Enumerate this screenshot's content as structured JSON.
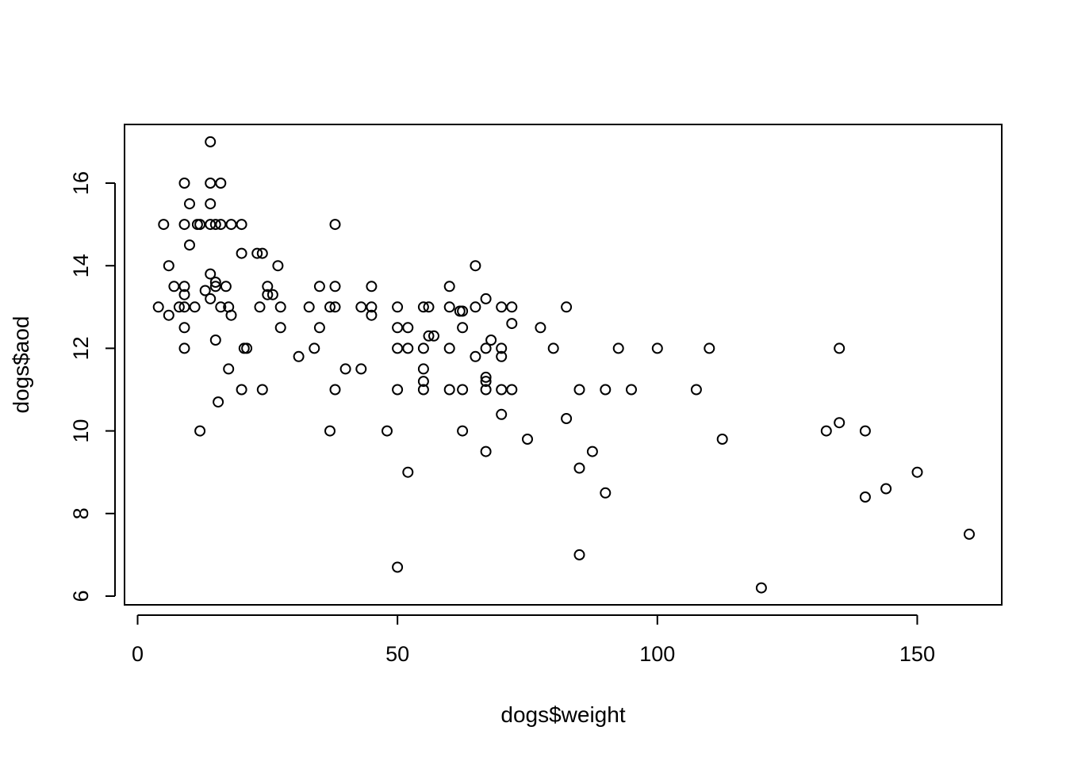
{
  "chart_data": {
    "type": "scatter",
    "title": "",
    "xlabel": "dogs$weight",
    "ylabel": "dogs$aod",
    "xlim": [
      0,
      165
    ],
    "ylim": [
      6,
      17
    ],
    "xticks": [
      "0",
      "50",
      "100",
      "150"
    ],
    "yticks": [
      "6",
      "8",
      "10",
      "12",
      "14",
      "16"
    ],
    "grid": false,
    "legend": "none",
    "marker": "open-circle",
    "color": "#000000",
    "points": [
      [
        4,
        13
      ],
      [
        5,
        15
      ],
      [
        6,
        12.8
      ],
      [
        6,
        14
      ],
      [
        7,
        13.5
      ],
      [
        8,
        13
      ],
      [
        9,
        16
      ],
      [
        9,
        15
      ],
      [
        9,
        13.5
      ],
      [
        9,
        13.3
      ],
      [
        9,
        13
      ],
      [
        9,
        12.5
      ],
      [
        9,
        12
      ],
      [
        10,
        15.5
      ],
      [
        10,
        14.5
      ],
      [
        11,
        13
      ],
      [
        11.5,
        15
      ],
      [
        12,
        15
      ],
      [
        12,
        10
      ],
      [
        13,
        13.4
      ],
      [
        14,
        17
      ],
      [
        14,
        16
      ],
      [
        14,
        15.5
      ],
      [
        14,
        15
      ],
      [
        14,
        13.8
      ],
      [
        14,
        13.2
      ],
      [
        15,
        13.6
      ],
      [
        15,
        13.5
      ],
      [
        15,
        15
      ],
      [
        15,
        12.2
      ],
      [
        15.5,
        10.7
      ],
      [
        16,
        16
      ],
      [
        16,
        15
      ],
      [
        16,
        13
      ],
      [
        17,
        13.5
      ],
      [
        17.5,
        13
      ],
      [
        18,
        15
      ],
      [
        17.5,
        11.5
      ],
      [
        18,
        12.8
      ],
      [
        20,
        15
      ],
      [
        20,
        14.3
      ],
      [
        20,
        11
      ],
      [
        20.5,
        12
      ],
      [
        21,
        12
      ],
      [
        23,
        14.3
      ],
      [
        24,
        14.3
      ],
      [
        23.5,
        13
      ],
      [
        24,
        11
      ],
      [
        25,
        13.5
      ],
      [
        25,
        13.3
      ],
      [
        26,
        13.3
      ],
      [
        27,
        14
      ],
      [
        27.5,
        13
      ],
      [
        27.5,
        12.5
      ],
      [
        31,
        11.8
      ],
      [
        33,
        13
      ],
      [
        34,
        12
      ],
      [
        35,
        13.5
      ],
      [
        35,
        12.5
      ],
      [
        37,
        13
      ],
      [
        37,
        10
      ],
      [
        38,
        15
      ],
      [
        38,
        13.5
      ],
      [
        38,
        13
      ],
      [
        38,
        11
      ],
      [
        40,
        11.5
      ],
      [
        43,
        13
      ],
      [
        43,
        11.5
      ],
      [
        45,
        13.5
      ],
      [
        45,
        13
      ],
      [
        45,
        12.8
      ],
      [
        48,
        10
      ],
      [
        50,
        13
      ],
      [
        50,
        12.5
      ],
      [
        50,
        12
      ],
      [
        50,
        11
      ],
      [
        50,
        6.7
      ],
      [
        52,
        12.5
      ],
      [
        52,
        12
      ],
      [
        52,
        9
      ],
      [
        55,
        13
      ],
      [
        55,
        12
      ],
      [
        55,
        11.5
      ],
      [
        55,
        11.2
      ],
      [
        55,
        11
      ],
      [
        56,
        13
      ],
      [
        56,
        12.3
      ],
      [
        57,
        12.3
      ],
      [
        60,
        13.5
      ],
      [
        60,
        13
      ],
      [
        60,
        12
      ],
      [
        60,
        11
      ],
      [
        62,
        12.9
      ],
      [
        62.5,
        12.9
      ],
      [
        62.5,
        12.5
      ],
      [
        62.5,
        11
      ],
      [
        62.5,
        10
      ],
      [
        65,
        14
      ],
      [
        65,
        13
      ],
      [
        65,
        11.8
      ],
      [
        67,
        13.2
      ],
      [
        67,
        12
      ],
      [
        67,
        11.3
      ],
      [
        67,
        11.2
      ],
      [
        67,
        11
      ],
      [
        67,
        9.5
      ],
      [
        68,
        12.2
      ],
      [
        70,
        13
      ],
      [
        70,
        12
      ],
      [
        70,
        11.8
      ],
      [
        70,
        11
      ],
      [
        70,
        10.4
      ],
      [
        72,
        13
      ],
      [
        72,
        12.6
      ],
      [
        72,
        11
      ],
      [
        75,
        9.8
      ],
      [
        77.5,
        12.5
      ],
      [
        80,
        12
      ],
      [
        82.5,
        13
      ],
      [
        82.5,
        10.3
      ],
      [
        85,
        11
      ],
      [
        85,
        9.1
      ],
      [
        85,
        7
      ],
      [
        87.5,
        9.5
      ],
      [
        90,
        11
      ],
      [
        90,
        8.5
      ],
      [
        92.5,
        12
      ],
      [
        95,
        11
      ],
      [
        100,
        12
      ],
      [
        107.5,
        11
      ],
      [
        110,
        12
      ],
      [
        112.5,
        9.8
      ],
      [
        120,
        6.2
      ],
      [
        132.5,
        10
      ],
      [
        135,
        12
      ],
      [
        135,
        10.2
      ],
      [
        140,
        10
      ],
      [
        140,
        8.4
      ],
      [
        144,
        8.6
      ],
      [
        150,
        9
      ],
      [
        160,
        7.5
      ]
    ]
  }
}
